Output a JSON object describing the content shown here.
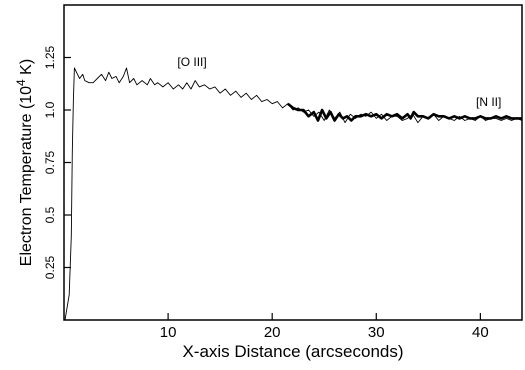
{
  "chart_data": {
    "type": "line",
    "xlabel": "X-axis Distance (arcseconds)",
    "ylabel_parts": {
      "prefix": "Electron Temperature (10",
      "sup": "4",
      "suffix": " K)"
    },
    "xlim": [
      0,
      44
    ],
    "ylim": [
      0,
      1.5
    ],
    "x_ticks": [
      10,
      20,
      30,
      40
    ],
    "y_ticks": [
      0.25,
      0.5,
      0.75,
      1.0,
      1.25
    ],
    "x_tick_labels": [
      "10",
      "20",
      "30",
      "40"
    ],
    "y_tick_labels": [
      "0.25",
      "0.5",
      "0.75",
      "1.0",
      "1.25"
    ],
    "grid": false,
    "annotations": [
      {
        "text": "[O III]",
        "x": 12.3,
        "y": 1.21
      },
      {
        "text": "[N II]",
        "x": 40.8,
        "y": 1.02
      }
    ],
    "series": [
      {
        "name": "[O III]",
        "style": "thin",
        "points": [
          [
            0.1,
            0.0
          ],
          [
            0.5,
            0.12
          ],
          [
            0.7,
            0.4
          ],
          [
            0.8,
            0.8
          ],
          [
            0.9,
            1.05
          ],
          [
            1.0,
            1.2
          ],
          [
            1.3,
            1.17
          ],
          [
            1.5,
            1.15
          ],
          [
            1.8,
            1.17
          ],
          [
            2.0,
            1.14
          ],
          [
            2.4,
            1.13
          ],
          [
            2.8,
            1.13
          ],
          [
            3.2,
            1.15
          ],
          [
            3.6,
            1.17
          ],
          [
            4.0,
            1.14
          ],
          [
            4.3,
            1.18
          ],
          [
            4.6,
            1.15
          ],
          [
            5.0,
            1.16
          ],
          [
            5.3,
            1.13
          ],
          [
            5.7,
            1.16
          ],
          [
            6.0,
            1.2
          ],
          [
            6.3,
            1.13
          ],
          [
            6.7,
            1.15
          ],
          [
            7.0,
            1.12
          ],
          [
            7.5,
            1.14
          ],
          [
            8.0,
            1.12
          ],
          [
            8.3,
            1.15
          ],
          [
            8.7,
            1.12
          ],
          [
            9.0,
            1.13
          ],
          [
            9.5,
            1.11
          ],
          [
            10.0,
            1.13
          ],
          [
            10.5,
            1.1
          ],
          [
            11.0,
            1.12
          ],
          [
            11.4,
            1.1
          ],
          [
            11.8,
            1.13
          ],
          [
            12.2,
            1.1
          ],
          [
            12.6,
            1.14
          ],
          [
            13.0,
            1.11
          ],
          [
            13.5,
            1.12
          ],
          [
            14.0,
            1.1
          ],
          [
            14.5,
            1.11
          ],
          [
            15.0,
            1.08
          ],
          [
            15.5,
            1.1
          ],
          [
            16.0,
            1.07
          ],
          [
            16.5,
            1.09
          ],
          [
            17.0,
            1.06
          ],
          [
            17.5,
            1.08
          ],
          [
            18.0,
            1.05
          ],
          [
            18.5,
            1.07
          ],
          [
            19.0,
            1.04
          ],
          [
            19.5,
            1.05
          ],
          [
            20.0,
            1.03
          ],
          [
            20.5,
            1.04
          ],
          [
            21.0,
            1.01
          ],
          [
            21.5,
            1.03
          ],
          [
            22.0,
            1.0
          ],
          [
            22.5,
            1.01
          ],
          [
            23.0,
            0.99
          ],
          [
            23.5,
            1.0
          ],
          [
            24.0,
            0.97
          ],
          [
            24.5,
            0.99
          ],
          [
            25.0,
            0.95
          ],
          [
            25.5,
            1.0
          ],
          [
            26.0,
            0.96
          ],
          [
            26.5,
            0.99
          ],
          [
            27.0,
            0.94
          ],
          [
            27.5,
            0.98
          ],
          [
            28.0,
            0.96
          ],
          [
            28.5,
            0.98
          ],
          [
            29.0,
            0.97
          ],
          [
            29.5,
            0.99
          ],
          [
            30.0,
            0.96
          ],
          [
            30.5,
            0.98
          ],
          [
            31.0,
            0.95
          ],
          [
            31.5,
            0.97
          ],
          [
            32.0,
            0.97
          ],
          [
            32.5,
            0.95
          ],
          [
            33.0,
            0.96
          ],
          [
            33.5,
            0.98
          ],
          [
            34.0,
            0.94
          ],
          [
            34.5,
            0.97
          ],
          [
            35.0,
            0.96
          ],
          [
            35.5,
            0.98
          ],
          [
            36.0,
            0.95
          ],
          [
            36.5,
            0.97
          ],
          [
            37.0,
            0.96
          ],
          [
            37.5,
            0.95
          ],
          [
            38.0,
            0.97
          ],
          [
            38.5,
            0.95
          ],
          [
            39.0,
            0.96
          ],
          [
            39.5,
            0.95
          ],
          [
            40.0,
            0.97
          ],
          [
            40.5,
            0.95
          ],
          [
            41.0,
            0.96
          ],
          [
            41.5,
            0.96
          ],
          [
            42.0,
            0.95
          ],
          [
            42.5,
            0.96
          ],
          [
            43.0,
            0.95
          ],
          [
            43.5,
            0.96
          ],
          [
            44.0,
            0.95
          ]
        ]
      },
      {
        "name": "[N II]",
        "style": "thick",
        "points": [
          [
            21.5,
            1.03
          ],
          [
            22.0,
            1.01
          ],
          [
            22.5,
            1.0
          ],
          [
            23.0,
            1.0
          ],
          [
            23.5,
            0.97
          ],
          [
            24.0,
            0.99
          ],
          [
            24.4,
            0.95
          ],
          [
            24.8,
            1.0
          ],
          [
            25.2,
            0.96
          ],
          [
            25.6,
            0.99
          ],
          [
            26.0,
            0.95
          ],
          [
            26.4,
            0.98
          ],
          [
            26.8,
            0.96
          ],
          [
            27.2,
            0.97
          ],
          [
            27.6,
            0.95
          ],
          [
            28.0,
            0.97
          ],
          [
            28.5,
            0.97
          ],
          [
            29.0,
            0.98
          ],
          [
            29.5,
            0.97
          ],
          [
            30.0,
            0.98
          ],
          [
            30.5,
            0.96
          ],
          [
            31.0,
            0.98
          ],
          [
            31.5,
            0.97
          ],
          [
            32.0,
            0.98
          ],
          [
            32.5,
            0.96
          ],
          [
            33.0,
            0.98
          ],
          [
            33.3,
            0.96
          ],
          [
            33.6,
            0.99
          ],
          [
            34.0,
            0.97
          ],
          [
            34.5,
            0.97
          ],
          [
            35.0,
            0.96
          ],
          [
            35.5,
            0.98
          ],
          [
            36.0,
            0.97
          ],
          [
            36.5,
            0.97
          ],
          [
            37.0,
            0.96
          ],
          [
            37.5,
            0.97
          ],
          [
            38.0,
            0.96
          ],
          [
            38.5,
            0.97
          ],
          [
            39.0,
            0.96
          ],
          [
            39.5,
            0.96
          ],
          [
            40.0,
            0.97
          ],
          [
            40.5,
            0.96
          ],
          [
            41.0,
            0.96
          ],
          [
            41.5,
            0.97
          ],
          [
            42.0,
            0.96
          ],
          [
            42.5,
            0.97
          ],
          [
            43.0,
            0.96
          ],
          [
            43.5,
            0.96
          ],
          [
            44.0,
            0.96
          ]
        ]
      }
    ]
  }
}
